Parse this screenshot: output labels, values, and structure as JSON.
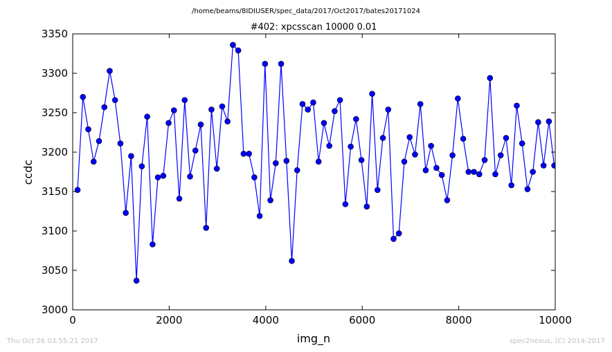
{
  "figure": {
    "suptitle": "/home/beams/8IDIUSER/spec_data/2017/Oct2017/bates20171024",
    "timestamp": "Thu Oct 26 03:55:21 2017",
    "credit": "spec2nexus, (C) 2014-2017"
  },
  "chart_data": {
    "type": "line",
    "title": "#402: xpcsscan 10000 0.01",
    "xlabel": "img_n",
    "ylabel": "ccdc",
    "xlim": [
      0,
      10000
    ],
    "ylim": [
      3000,
      3350
    ],
    "xticks": [
      0,
      2000,
      4000,
      6000,
      8000,
      10000
    ],
    "yticks": [
      3000,
      3050,
      3100,
      3150,
      3200,
      3250,
      3300,
      3350
    ],
    "grid": false,
    "series": [
      {
        "color": "#0000ff",
        "marker": "circle",
        "x": [
          101,
          212,
          323,
          434,
          545,
          656,
          767,
          878,
          989,
          1100,
          1211,
          1322,
          1433,
          1544,
          1655,
          1766,
          1877,
          1988,
          2099,
          2210,
          2321,
          2432,
          2543,
          2654,
          2765,
          2876,
          2987,
          3098,
          3209,
          3320,
          3431,
          3542,
          3653,
          3764,
          3875,
          3986,
          4097,
          4208,
          4319,
          4430,
          4541,
          4652,
          4763,
          4874,
          4985,
          5096,
          5207,
          5318,
          5429,
          5540,
          5651,
          5762,
          5873,
          5984,
          6095,
          6206,
          6317,
          6428,
          6539,
          6650,
          6761,
          6872,
          6983,
          7094,
          7205,
          7316,
          7427,
          7538,
          7649,
          7760,
          7871,
          7982,
          8093,
          8204,
          8315,
          8426,
          8537,
          8648,
          8759,
          8870,
          8981,
          9092,
          9203,
          9314,
          9425,
          9536,
          9647,
          9758,
          9869,
          9980
        ],
        "y": [
          3152,
          3270,
          3229,
          3188,
          3214,
          3257,
          3303,
          3266,
          3211,
          3123,
          3195,
          3037,
          3182,
          3245,
          3083,
          3168,
          3170,
          3237,
          3253,
          3141,
          3266,
          3169,
          3202,
          3235,
          3104,
          3254,
          3179,
          3258,
          3239,
          3336,
          3329,
          3198,
          3198,
          3168,
          3119,
          3312,
          3139,
          3186,
          3312,
          3189,
          3062,
          3177,
          3261,
          3254,
          3263,
          3188,
          3237,
          3208,
          3252,
          3266,
          3134,
          3207,
          3242,
          3190,
          3131,
          3274,
          3152,
          3218,
          3254,
          3090,
          3097,
          3188,
          3219,
          3197,
          3261,
          3177,
          3208,
          3180,
          3171,
          3139,
          3196,
          3268,
          3217,
          3175,
          3175,
          3172,
          3190,
          3294,
          3172,
          3196,
          3218,
          3158,
          3259,
          3211,
          3153,
          3175,
          3238,
          3183,
          3239,
          3183
        ]
      }
    ]
  }
}
